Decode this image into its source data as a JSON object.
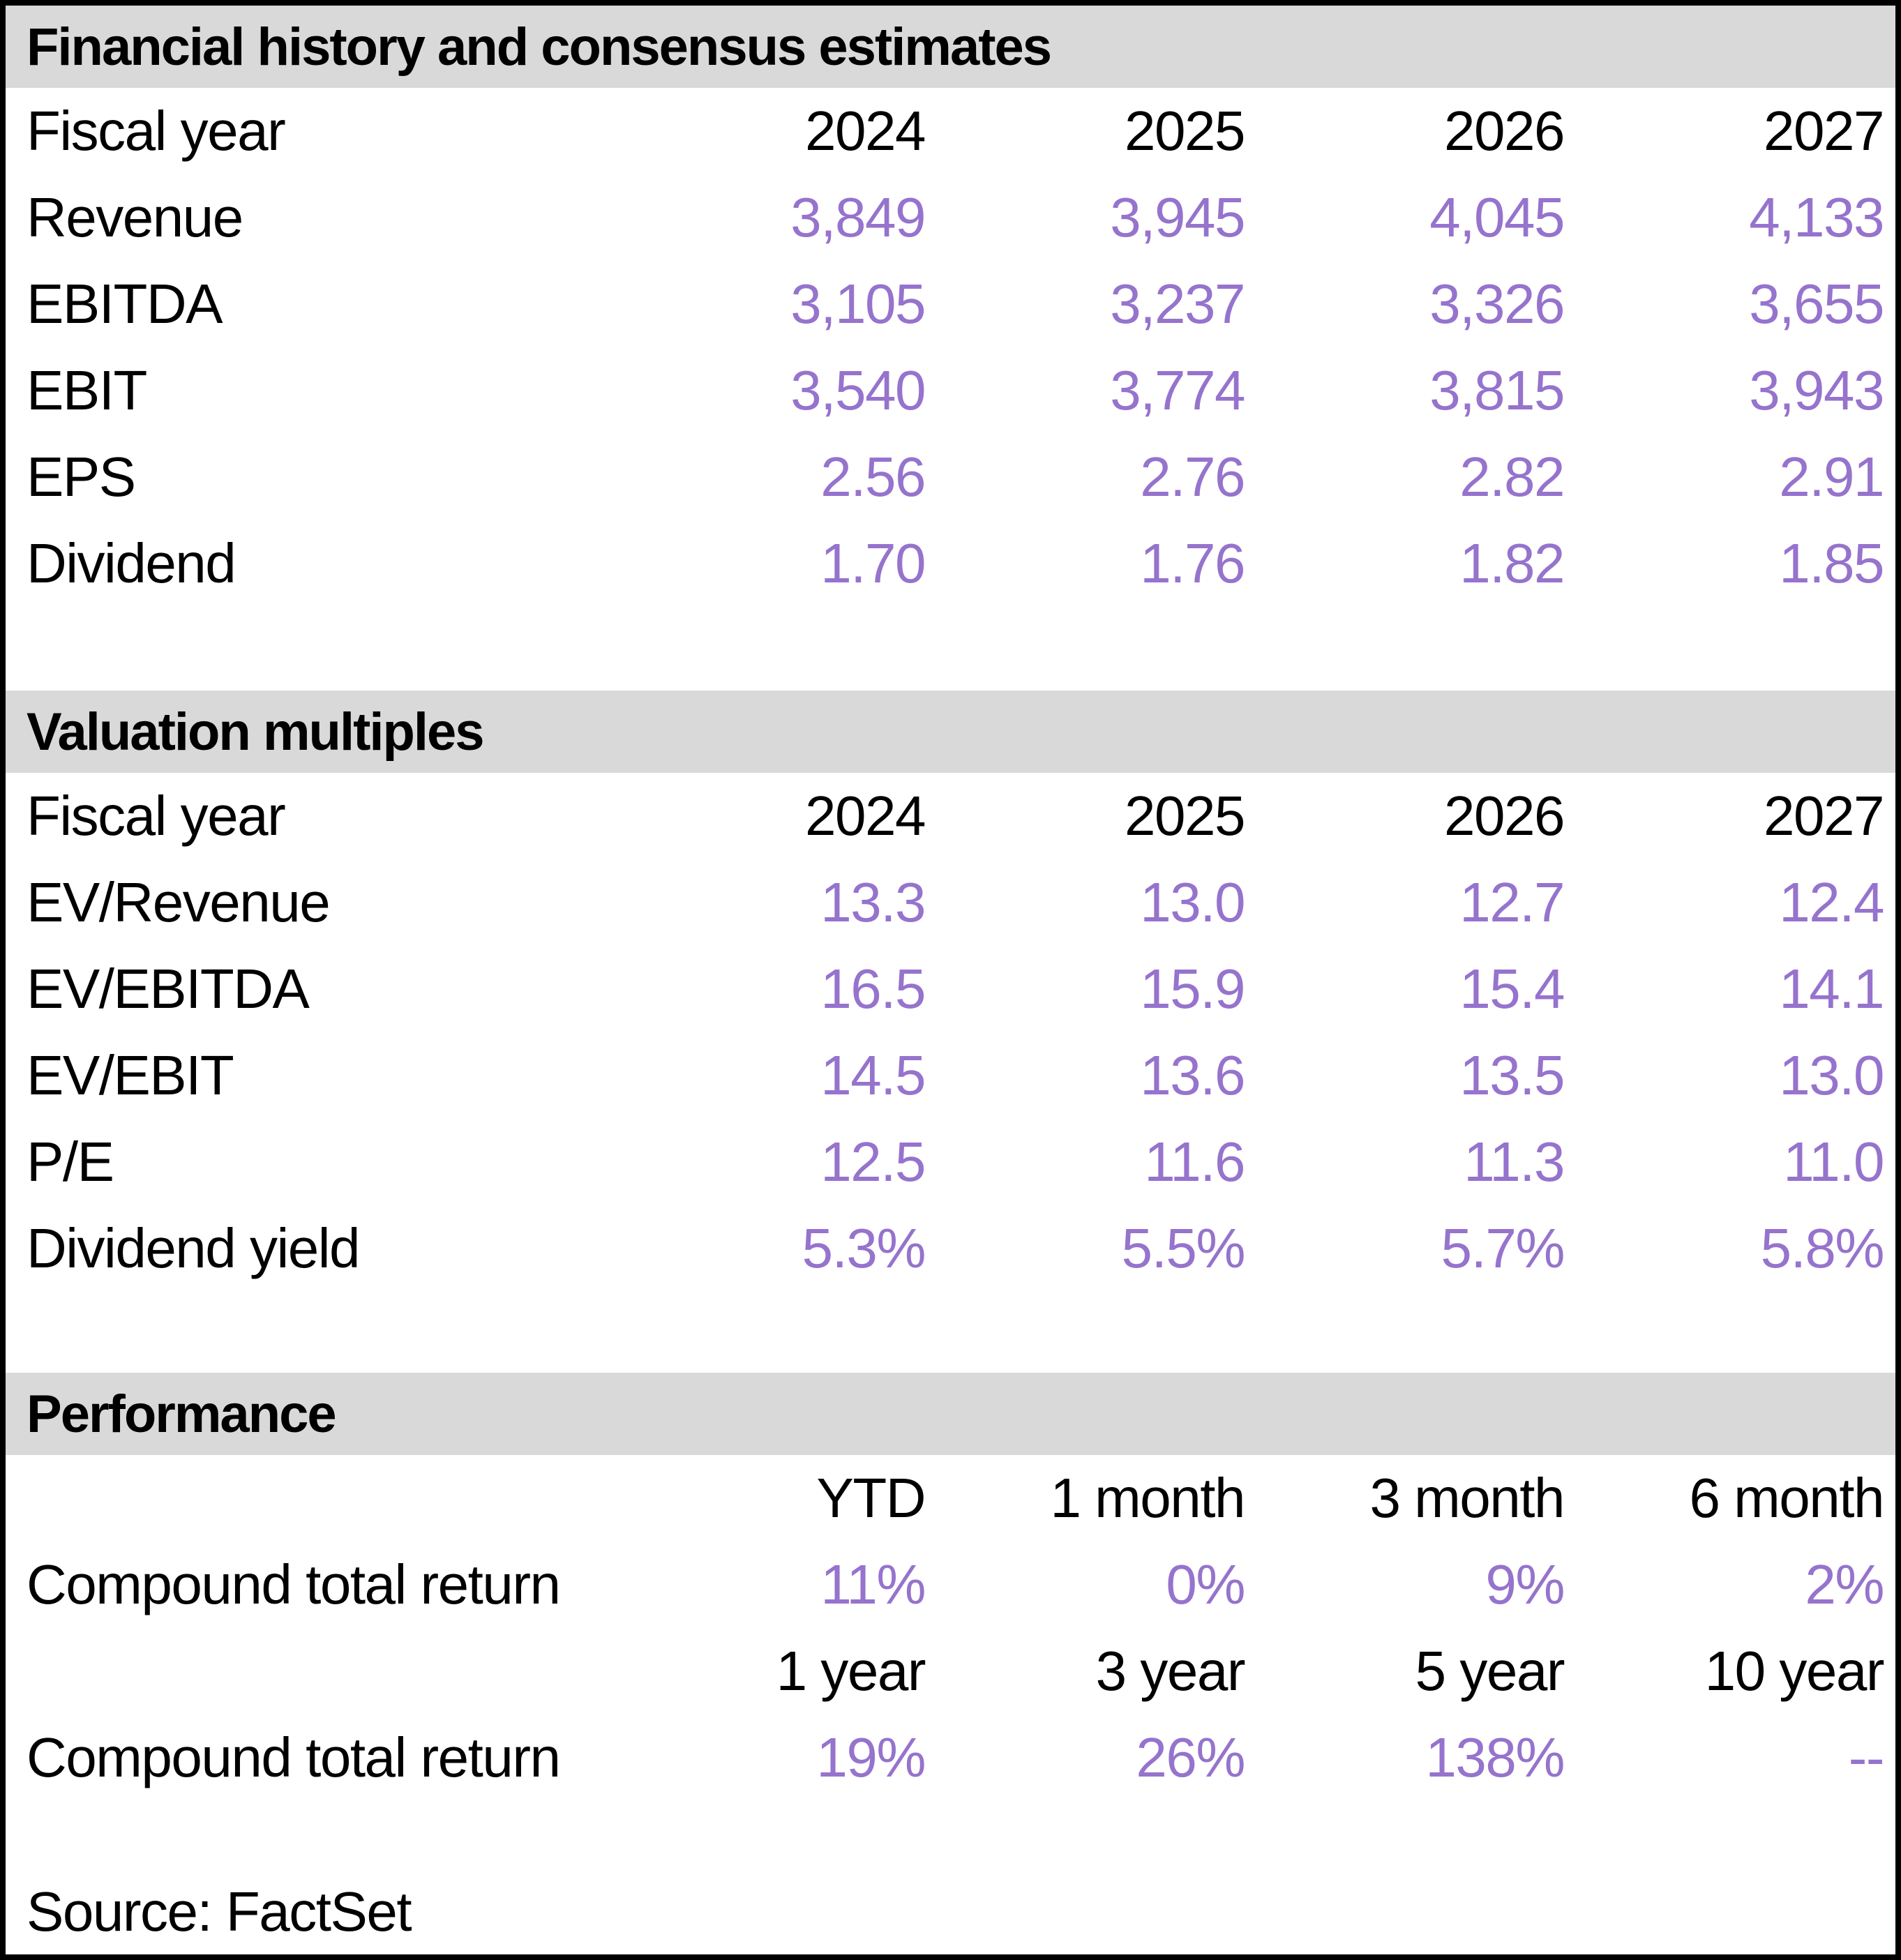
{
  "colors": {
    "accent_purple": "#9673CD",
    "section_band_bg": "#D9D9D9",
    "text": "#000000",
    "border": "#000000"
  },
  "sections": [
    {
      "title": "Financial history and consensus estimates",
      "header_row": {
        "label": "Fiscal year",
        "cols": [
          "2024",
          "2025",
          "2026",
          "2027"
        ]
      },
      "rows": [
        {
          "label": "Revenue",
          "values": [
            "3,849",
            "3,945",
            "4,045",
            "4,133"
          ]
        },
        {
          "label": "EBITDA",
          "values": [
            "3,105",
            "3,237",
            "3,326",
            "3,655"
          ]
        },
        {
          "label": "EBIT",
          "values": [
            "3,540",
            "3,774",
            "3,815",
            "3,943"
          ]
        },
        {
          "label": "EPS",
          "values": [
            "2.56",
            "2.76",
            "2.82",
            "2.91"
          ]
        },
        {
          "label": "Dividend",
          "values": [
            "1.70",
            "1.76",
            "1.82",
            "1.85"
          ]
        }
      ]
    },
    {
      "title": "Valuation multiples",
      "header_row": {
        "label": "Fiscal year",
        "cols": [
          "2024",
          "2025",
          "2026",
          "2027"
        ]
      },
      "rows": [
        {
          "label": "EV/Revenue",
          "values": [
            "13.3",
            "13.0",
            "12.7",
            "12.4"
          ]
        },
        {
          "label": "EV/EBITDA",
          "values": [
            "16.5",
            "15.9",
            "15.4",
            "14.1"
          ]
        },
        {
          "label": "EV/EBIT",
          "values": [
            "14.5",
            "13.6",
            "13.5",
            "13.0"
          ]
        },
        {
          "label": "P/E",
          "values": [
            "12.5",
            "11.6",
            "11.3",
            "11.0"
          ]
        },
        {
          "label": "Dividend yield",
          "values": [
            "5.3%",
            "5.5%",
            "5.7%",
            "5.8%"
          ]
        }
      ]
    },
    {
      "title": "Performance",
      "blocks": [
        {
          "header": [
            "YTD",
            "1 month",
            "3 month",
            "6 month"
          ],
          "label": "Compound total return",
          "values": [
            "11%",
            "0%",
            "9%",
            "2%"
          ]
        },
        {
          "header": [
            "1 year",
            "3 year",
            "5 year",
            "10 year"
          ],
          "label": "Compound total return",
          "values": [
            "19%",
            "26%",
            "138%",
            "--"
          ]
        }
      ]
    }
  ],
  "source": "Source: FactSet"
}
